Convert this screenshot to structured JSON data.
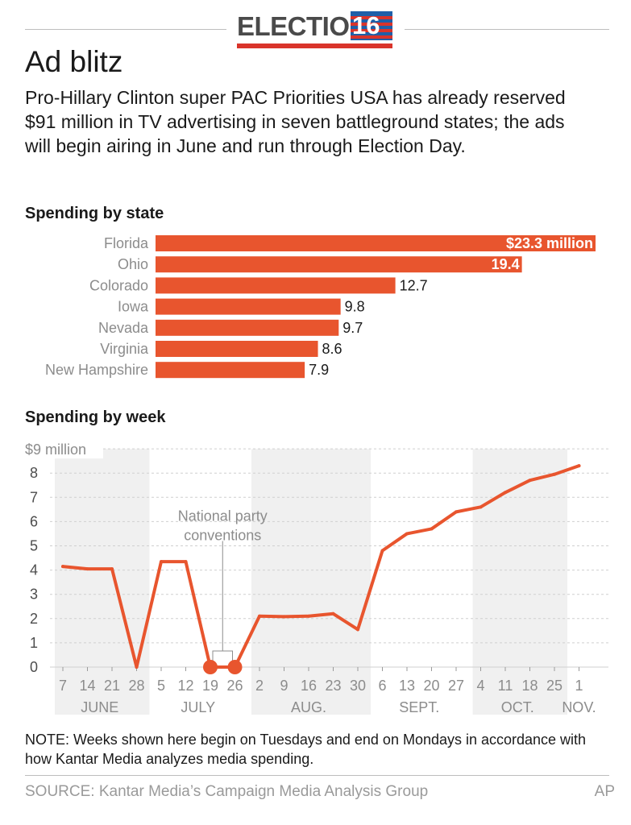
{
  "header": {
    "brand_word": "ELECTION",
    "brand_number": "16"
  },
  "title": "Ad blitz",
  "subtitle": "Pro-Hillary Clinton super PAC Priorities USA has already reserved $91 million in TV advertising in seven battleground states; the ads will begin airing in June and run through Election Day.",
  "note": "NOTE: Weeks shown here begin on Tuesdays and end on Mondays in accordance with how Kantar Media analyzes media spending.",
  "source": "SOURCE: Kantar Media’s Campaign Media Analysis Group",
  "credit": "AP",
  "colors": {
    "accent": "#e8552e",
    "band": "#f0f0f0",
    "grid": "#cfcfcf",
    "brand_blue": "#1f5fa8",
    "brand_red": "#d9342b"
  },
  "chart_data": [
    {
      "type": "bar",
      "title": "Spending by state",
      "categories": [
        "Florida",
        "Ohio",
        "Colorado",
        "Iowa",
        "Nevada",
        "Virginia",
        "New Hampshire"
      ],
      "values": [
        23.3,
        19.4,
        12.7,
        9.8,
        9.7,
        8.6,
        7.9
      ],
      "labels": [
        "$23.3 million",
        "19.4",
        "12.7",
        "9.8",
        "9.7",
        "8.6",
        "7.9"
      ],
      "xlim": [
        0,
        23.3
      ]
    },
    {
      "type": "line",
      "title": "Spending by week",
      "y_top_label": "$9 million",
      "yticks": [
        0,
        1,
        2,
        3,
        4,
        5,
        6,
        7,
        8
      ],
      "ylim": [
        0,
        9
      ],
      "x": [
        "7",
        "14",
        "21",
        "28",
        "5",
        "12",
        "19",
        "26",
        "2",
        "9",
        "16",
        "23",
        "30",
        "6",
        "13",
        "20",
        "27",
        "4",
        "11",
        "18",
        "25",
        "1"
      ],
      "values": [
        4.15,
        4.05,
        4.05,
        0,
        4.35,
        4.35,
        0,
        0,
        2.1,
        2.08,
        2.1,
        2.2,
        1.55,
        4.8,
        5.5,
        5.7,
        6.4,
        6.6,
        7.2,
        7.7,
        7.95,
        8.3
      ],
      "months": [
        {
          "label": "JUNE",
          "start": 0,
          "end": 3,
          "shaded": true
        },
        {
          "label": "JULY",
          "start": 4,
          "end": 7,
          "shaded": false
        },
        {
          "label": "AUG.",
          "start": 8,
          "end": 12,
          "shaded": true
        },
        {
          "label": "SEPT.",
          "start": 13,
          "end": 16,
          "shaded": false
        },
        {
          "label": "OCT.",
          "start": 17,
          "end": 20,
          "shaded": true
        },
        {
          "label": "NOV.",
          "start": 21,
          "end": 21,
          "shaded": false
        }
      ],
      "highlight_points": [
        6,
        7
      ],
      "annotation": {
        "text_lines": [
          "National party",
          "conventions"
        ]
      },
      "grid": true
    }
  ]
}
